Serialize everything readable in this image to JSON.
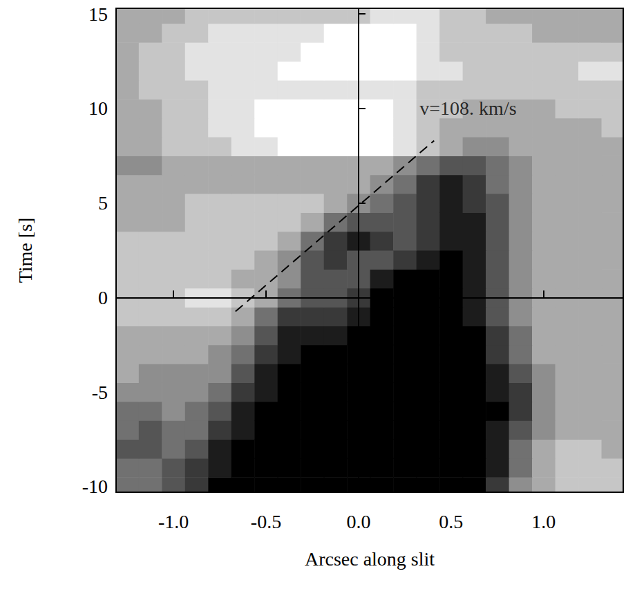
{
  "chart_data": {
    "type": "heatmap",
    "x_label": "Arcsec along slit",
    "y_label": "Time [s]",
    "xlim": [
      -1.31,
      1.43
    ],
    "ylim": [
      -10.3,
      15.3
    ],
    "xticks": [
      {
        "value": -1.0,
        "label": "-1.0"
      },
      {
        "value": -0.5,
        "label": "-0.5"
      },
      {
        "value": 0.0,
        "label": "0.0"
      },
      {
        "value": 0.5,
        "label": "0.5"
      },
      {
        "value": 1.0,
        "label": "1.0"
      }
    ],
    "yticks": [
      -10,
      -5,
      0,
      5,
      10,
      15
    ],
    "color": "gray",
    "cell_range": [
      0,
      9
    ],
    "x": [
      -1.25,
      -1.125,
      -1.0,
      -0.875,
      -0.75,
      -0.625,
      -0.5,
      -0.375,
      -0.25,
      -0.125,
      0.0,
      0.125,
      0.25,
      0.375,
      0.5,
      0.625,
      0.75,
      0.875,
      1.0,
      1.125,
      1.25,
      1.375
    ],
    "y": [
      -10,
      -9,
      -8,
      -7,
      -6,
      -5,
      -4,
      -3,
      -2,
      -1,
      0,
      1,
      2,
      3,
      4,
      5,
      6,
      7,
      8,
      9,
      10,
      11,
      12,
      13,
      14,
      15
    ],
    "cells": [
      [
        4,
        4,
        3,
        2,
        0,
        0,
        0,
        0,
        0,
        0,
        0,
        0,
        0,
        0,
        0,
        0,
        2,
        5,
        6,
        7,
        7,
        7
      ],
      [
        4,
        4,
        3,
        2,
        1,
        0,
        0,
        0,
        0,
        0,
        0,
        0,
        0,
        0,
        0,
        0,
        1,
        4,
        6,
        7,
        7,
        7
      ],
      [
        3,
        3,
        4,
        3,
        1,
        0,
        0,
        0,
        0,
        0,
        0,
        0,
        0,
        0,
        0,
        0,
        1,
        4,
        6,
        7,
        7,
        6
      ],
      [
        4,
        3,
        4,
        4,
        2,
        1,
        0,
        0,
        0,
        0,
        0,
        0,
        0,
        0,
        0,
        0,
        1,
        3,
        5,
        6,
        6,
        6
      ],
      [
        4,
        4,
        5,
        4,
        3,
        1,
        0,
        0,
        0,
        0,
        0,
        0,
        0,
        0,
        0,
        0,
        0,
        2,
        5,
        6,
        6,
        6
      ],
      [
        5,
        5,
        5,
        5,
        4,
        2,
        1,
        0,
        0,
        0,
        0,
        0,
        0,
        0,
        0,
        0,
        1,
        2,
        5,
        6,
        6,
        6
      ],
      [
        6,
        5,
        5,
        5,
        5,
        3,
        1,
        0,
        0,
        0,
        0,
        0,
        0,
        0,
        0,
        0,
        1,
        3,
        5,
        6,
        6,
        6
      ],
      [
        6,
        6,
        6,
        6,
        5,
        4,
        2,
        1,
        0,
        0,
        0,
        0,
        0,
        0,
        0,
        0,
        2,
        4,
        6,
        6,
        6,
        6
      ],
      [
        6,
        6,
        6,
        6,
        6,
        5,
        3,
        1,
        1,
        1,
        0,
        0,
        0,
        0,
        0,
        0,
        2,
        4,
        6,
        6,
        6,
        6
      ],
      [
        7,
        7,
        7,
        7,
        7,
        6,
        4,
        2,
        2,
        2,
        1,
        0,
        0,
        0,
        0,
        1,
        3,
        5,
        6,
        6,
        6,
        6
      ],
      [
        7,
        7,
        7,
        8,
        8,
        7,
        6,
        4,
        3,
        3,
        2,
        0,
        0,
        0,
        0,
        1,
        3,
        5,
        6,
        6,
        6,
        6
      ],
      [
        7,
        7,
        7,
        7,
        7,
        6,
        6,
        5,
        3,
        3,
        3,
        1,
        0,
        0,
        0,
        1,
        3,
        5,
        6,
        6,
        6,
        6
      ],
      [
        7,
        7,
        7,
        7,
        7,
        7,
        6,
        5,
        3,
        2,
        3,
        3,
        2,
        1,
        0,
        1,
        3,
        5,
        6,
        6,
        6,
        6
      ],
      [
        7,
        7,
        7,
        7,
        7,
        7,
        7,
        6,
        4,
        2,
        1,
        2,
        3,
        2,
        1,
        1,
        3,
        5,
        6,
        6,
        6,
        6
      ],
      [
        6,
        6,
        6,
        7,
        7,
        7,
        7,
        7,
        6,
        4,
        3,
        3,
        3,
        2,
        1,
        1,
        3,
        5,
        6,
        6,
        6,
        6
      ],
      [
        6,
        6,
        6,
        7,
        7,
        7,
        7,
        7,
        7,
        6,
        5,
        4,
        3,
        2,
        1,
        2,
        3,
        5,
        6,
        6,
        6,
        6
      ],
      [
        6,
        6,
        6,
        6,
        6,
        6,
        6,
        6,
        6,
        6,
        6,
        5,
        4,
        2,
        1,
        2,
        4,
        5,
        6,
        6,
        6,
        6
      ],
      [
        5,
        5,
        6,
        6,
        6,
        6,
        6,
        6,
        6,
        6,
        6,
        6,
        5,
        4,
        3,
        3,
        4,
        5,
        6,
        6,
        6,
        6
      ],
      [
        6,
        6,
        7,
        7,
        7,
        8,
        8,
        9,
        9,
        9,
        9,
        9,
        8,
        7,
        6,
        5,
        5,
        6,
        6,
        6,
        6,
        6
      ],
      [
        6,
        6,
        7,
        7,
        8,
        8,
        9,
        9,
        9,
        9,
        9,
        9,
        8,
        7,
        6,
        6,
        6,
        6,
        6,
        6,
        6,
        7
      ],
      [
        6,
        6,
        7,
        7,
        8,
        8,
        9,
        9,
        9,
        9,
        9,
        9,
        8,
        7,
        7,
        6,
        6,
        6,
        6,
        7,
        7,
        7
      ],
      [
        6,
        7,
        7,
        7,
        8,
        8,
        8,
        8,
        8,
        8,
        8,
        8,
        8,
        7,
        7,
        7,
        7,
        7,
        7,
        7,
        7,
        7
      ],
      [
        6,
        7,
        7,
        8,
        8,
        8,
        8,
        9,
        9,
        9,
        9,
        9,
        9,
        8,
        8,
        7,
        7,
        7,
        7,
        7,
        8,
        8
      ],
      [
        6,
        7,
        7,
        8,
        8,
        8,
        8,
        8,
        9,
        9,
        9,
        9,
        9,
        8,
        7,
        7,
        7,
        7,
        7,
        7,
        7,
        7
      ],
      [
        6,
        6,
        7,
        7,
        8,
        8,
        8,
        8,
        8,
        9,
        9,
        9,
        9,
        8,
        7,
        7,
        7,
        7,
        6,
        6,
        6,
        6
      ],
      [
        6,
        6,
        6,
        7,
        7,
        7,
        7,
        7,
        7,
        7,
        7,
        8,
        8,
        8,
        7,
        7,
        6,
        6,
        6,
        6,
        6,
        6
      ]
    ],
    "annotations": [
      {
        "type": "line",
        "x": [
          -0.665,
          0.408
        ],
        "y": [
          -0.74,
          8.3
        ],
        "line_style": "dashed"
      },
      {
        "type": "text",
        "text": "v=108. km/s",
        "x": 0.33,
        "y": 10.0
      }
    ]
  }
}
